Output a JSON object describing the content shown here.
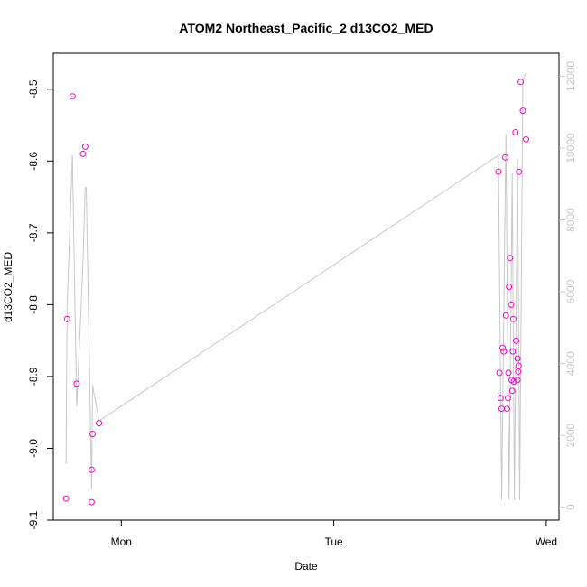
{
  "chart_data": {
    "type": "scatter",
    "title": "ATOM2 Northeast_Pacific_2 d13CO2_MED",
    "xlabel": "Date",
    "ylabel": "d13CO2_MED",
    "x_ticks": [
      {
        "label": "Mon",
        "value": 1.0
      },
      {
        "label": "Tue",
        "value": 2.0
      },
      {
        "label": "Wed",
        "value": 3.0
      }
    ],
    "xlim": [
      0.68,
      3.06
    ],
    "ylim": [
      -9.1,
      -8.45
    ],
    "y_ticks": [
      -9.1,
      -9.0,
      -8.9,
      -8.8,
      -8.7,
      -8.6,
      -8.5
    ],
    "y2_ticks": [
      0,
      2000,
      4000,
      6000,
      8000,
      10000,
      12000
    ],
    "y2lim": [
      -360,
      12640
    ],
    "points_color": "#ff00cc",
    "line_color": "#c8c8c8",
    "points": [
      {
        "x": 0.74,
        "y": -9.07
      },
      {
        "x": 0.745,
        "y": -8.82
      },
      {
        "x": 0.77,
        "y": -8.51
      },
      {
        "x": 0.79,
        "y": -8.91
      },
      {
        "x": 0.82,
        "y": -8.59
      },
      {
        "x": 0.83,
        "y": -8.58
      },
      {
        "x": 0.86,
        "y": -9.075
      },
      {
        "x": 0.86,
        "y": -9.03
      },
      {
        "x": 0.865,
        "y": -8.98
      },
      {
        "x": 0.895,
        "y": -8.965
      },
      {
        "x": 2.775,
        "y": -8.615
      },
      {
        "x": 2.78,
        "y": -8.895
      },
      {
        "x": 2.785,
        "y": -8.93
      },
      {
        "x": 2.79,
        "y": -8.945
      },
      {
        "x": 2.795,
        "y": -8.86
      },
      {
        "x": 2.8,
        "y": -8.865
      },
      {
        "x": 2.807,
        "y": -8.595
      },
      {
        "x": 2.81,
        "y": -8.815
      },
      {
        "x": 2.815,
        "y": -8.945
      },
      {
        "x": 2.82,
        "y": -8.93
      },
      {
        "x": 2.822,
        "y": -8.895
      },
      {
        "x": 2.825,
        "y": -8.775
      },
      {
        "x": 2.83,
        "y": -8.735
      },
      {
        "x": 2.835,
        "y": -8.8
      },
      {
        "x": 2.837,
        "y": -8.905
      },
      {
        "x": 2.84,
        "y": -8.92
      },
      {
        "x": 2.843,
        "y": -8.865
      },
      {
        "x": 2.845,
        "y": -8.82
      },
      {
        "x": 2.848,
        "y": -8.907
      },
      {
        "x": 2.855,
        "y": -8.56
      },
      {
        "x": 2.858,
        "y": -8.85
      },
      {
        "x": 2.865,
        "y": -8.875
      },
      {
        "x": 2.865,
        "y": -8.905
      },
      {
        "x": 2.868,
        "y": -8.893
      },
      {
        "x": 2.87,
        "y": -8.885
      },
      {
        "x": 2.872,
        "y": -8.615
      },
      {
        "x": 2.88,
        "y": -8.49
      },
      {
        "x": 2.89,
        "y": -8.53
      },
      {
        "x": 2.905,
        "y": -8.57
      }
    ],
    "secondary_line": [
      {
        "x": 0.74,
        "y": 1200
      },
      {
        "x": 0.745,
        "y": 5600
      },
      {
        "x": 0.77,
        "y": 9800
      },
      {
        "x": 0.79,
        "y": 2800
      },
      {
        "x": 0.82,
        "y": 6800
      },
      {
        "x": 0.83,
        "y": 8900
      },
      {
        "x": 0.835,
        "y": 8900
      },
      {
        "x": 0.86,
        "y": 500
      },
      {
        "x": 0.865,
        "y": 3400
      },
      {
        "x": 0.895,
        "y": 2400
      },
      {
        "x": 2.775,
        "y": 9800
      },
      {
        "x": 2.79,
        "y": 200
      },
      {
        "x": 2.81,
        "y": 10400
      },
      {
        "x": 2.825,
        "y": 200
      },
      {
        "x": 2.84,
        "y": 9300
      },
      {
        "x": 2.85,
        "y": 200
      },
      {
        "x": 2.865,
        "y": 9700
      },
      {
        "x": 2.875,
        "y": 200
      },
      {
        "x": 2.89,
        "y": 11900
      },
      {
        "x": 2.905,
        "y": 12100
      }
    ]
  }
}
